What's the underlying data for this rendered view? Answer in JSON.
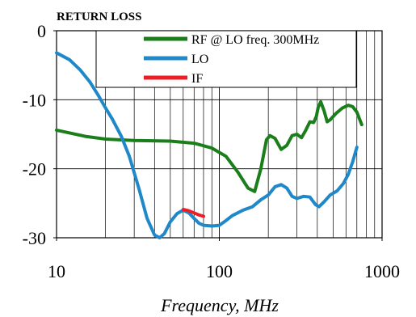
{
  "chart_data": {
    "type": "line",
    "title": "RETURN LOSS",
    "xlabel": "Frequency, MHz",
    "ylabel": "",
    "xscale": "log",
    "xlim": [
      10,
      1000
    ],
    "ylim": [
      -30,
      0
    ],
    "x_ticks": [
      "10",
      "100",
      "1000"
    ],
    "y_ticks": [
      "0",
      "-10",
      "-20",
      "-30"
    ],
    "grid": "on",
    "legend_position": "top-right",
    "series": [
      {
        "name": "RF @ LO freq. 300MHz",
        "color": "#1a7f1a",
        "points": [
          [
            10,
            -14.4
          ],
          [
            15,
            -15.3
          ],
          [
            20,
            -15.7
          ],
          [
            30,
            -15.9
          ],
          [
            50,
            -16.0
          ],
          [
            70,
            -16.3
          ],
          [
            90,
            -17.0
          ],
          [
            110,
            -18.2
          ],
          [
            130,
            -20.5
          ],
          [
            150,
            -22.8
          ],
          [
            165,
            -23.3
          ],
          [
            180,
            -20.0
          ],
          [
            195,
            -15.8
          ],
          [
            205,
            -15.2
          ],
          [
            220,
            -15.6
          ],
          [
            240,
            -17.2
          ],
          [
            260,
            -16.6
          ],
          [
            280,
            -15.2
          ],
          [
            300,
            -15.0
          ],
          [
            320,
            -15.5
          ],
          [
            340,
            -14.4
          ],
          [
            360,
            -13.2
          ],
          [
            380,
            -13.3
          ],
          [
            395,
            -12.4
          ],
          [
            405,
            -11.1
          ],
          [
            420,
            -10.3
          ],
          [
            440,
            -11.6
          ],
          [
            460,
            -13.2
          ],
          [
            480,
            -12.9
          ],
          [
            520,
            -12.0
          ],
          [
            570,
            -11.2
          ],
          [
            620,
            -10.8
          ],
          [
            660,
            -11.0
          ],
          [
            700,
            -11.8
          ],
          [
            750,
            -13.6
          ]
        ]
      },
      {
        "name": "LO",
        "color": "#1f88c9",
        "points": [
          [
            10,
            -3.2
          ],
          [
            12,
            -4.2
          ],
          [
            14,
            -5.7
          ],
          [
            16,
            -7.4
          ],
          [
            18,
            -9.3
          ],
          [
            20,
            -11.2
          ],
          [
            22,
            -12.8
          ],
          [
            25,
            -15.3
          ],
          [
            28,
            -18.2
          ],
          [
            32,
            -22.8
          ],
          [
            36,
            -27.2
          ],
          [
            40,
            -29.6
          ],
          [
            43,
            -30.0
          ],
          [
            46,
            -29.4
          ],
          [
            50,
            -27.7
          ],
          [
            55,
            -26.5
          ],
          [
            60,
            -26.0
          ],
          [
            65,
            -26.4
          ],
          [
            70,
            -27.2
          ],
          [
            75,
            -27.9
          ],
          [
            80,
            -28.2
          ],
          [
            90,
            -28.3
          ],
          [
            100,
            -28.2
          ],
          [
            110,
            -27.5
          ],
          [
            120,
            -26.8
          ],
          [
            140,
            -26.0
          ],
          [
            160,
            -25.5
          ],
          [
            180,
            -24.5
          ],
          [
            200,
            -23.8
          ],
          [
            220,
            -22.6
          ],
          [
            240,
            -22.3
          ],
          [
            260,
            -22.8
          ],
          [
            280,
            -24.0
          ],
          [
            300,
            -24.3
          ],
          [
            330,
            -24.0
          ],
          [
            360,
            -24.1
          ],
          [
            390,
            -25.2
          ],
          [
            410,
            -25.5
          ],
          [
            440,
            -24.8
          ],
          [
            480,
            -23.8
          ],
          [
            530,
            -23.2
          ],
          [
            580,
            -22.1
          ],
          [
            620,
            -20.8
          ],
          [
            660,
            -19.0
          ],
          [
            700,
            -16.9
          ]
        ]
      },
      {
        "name": "IF",
        "color": "#ee1c24",
        "points": [
          [
            60,
            -25.9
          ],
          [
            65,
            -26.1
          ],
          [
            70,
            -26.4
          ],
          [
            75,
            -26.7
          ],
          [
            80,
            -26.9
          ]
        ]
      }
    ]
  }
}
